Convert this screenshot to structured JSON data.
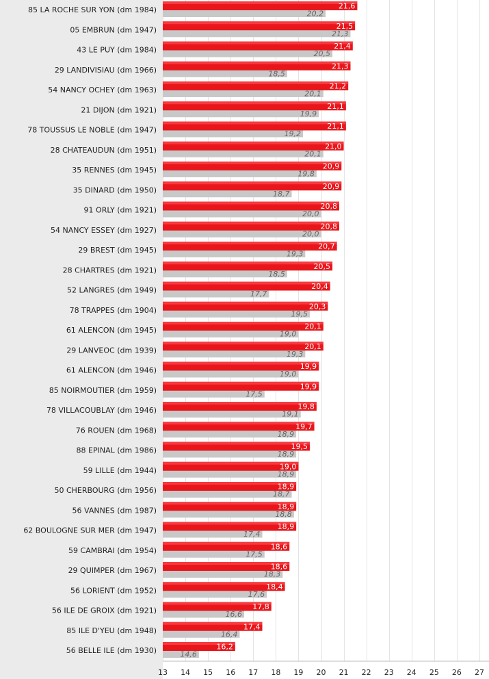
{
  "chart_data": {
    "type": "bar",
    "orientation": "horizontal",
    "categories": [
      "85 LA ROCHE SUR YON (dm 1984)",
      "05 EMBRUN (dm 1947)",
      "43 LE PUY (dm 1984)",
      "29 LANDIVISIAU (dm 1966)",
      "54 NANCY OCHEY (dm 1963)",
      "21 DIJON (dm 1921)",
      "78 TOUSSUS LE NOBLE (dm 1947)",
      "28 CHATEAUDUN (dm 1951)",
      "35 RENNES (dm 1945)",
      "35 DINARD (dm 1950)",
      "91 ORLY (dm 1921)",
      "54 NANCY ESSEY (dm 1927)",
      "29 BREST (dm 1945)",
      "28 CHARTRES (dm 1921)",
      "52 LANGRES (dm 1949)",
      "78 TRAPPES (dm 1904)",
      "61 ALENCON (dm 1945)",
      "29 LANVEOC (dm 1939)",
      "61 ALENCON (dm 1946)",
      "85 NOIRMOUTIER (dm 1959)",
      "78 VILLACOUBLAY (dm 1946)",
      "76 ROUEN (dm 1968)",
      "88 EPINAL (dm 1986)",
      "59 LILLE (dm 1944)",
      "50 CHERBOURG (dm 1956)",
      "56 VANNES (dm 1987)",
      "62 BOULOGNE SUR MER (dm 1947)",
      "59 CAMBRAI (dm 1954)",
      "29 QUIMPER (dm 1967)",
      "56 LORIENT (dm 1952)",
      "56 ILE DE GROIX (dm 1921)",
      "85 ILE D'YEU (dm 1948)",
      "56 BELLE ILE (dm 1930)"
    ],
    "series": [
      {
        "color": "#e8161b",
        "values": [
          21.6,
          21.5,
          21.4,
          21.3,
          21.2,
          21.1,
          21.1,
          21.0,
          20.9,
          20.9,
          20.8,
          20.8,
          20.7,
          20.5,
          20.4,
          20.3,
          20.1,
          20.1,
          19.9,
          19.9,
          19.8,
          19.7,
          19.5,
          19.0,
          18.9,
          18.9,
          18.9,
          18.6,
          18.6,
          18.4,
          17.8,
          17.4,
          16.2
        ],
        "labels": [
          "21,6",
          "21,5",
          "21,4",
          "21,3",
          "21,2",
          "21,1",
          "21,1",
          "21,0",
          "20,9",
          "20,9",
          "20,8",
          "20,8",
          "20,7",
          "20,5",
          "20,4",
          "20,3",
          "20,1",
          "20,1",
          "19,9",
          "19,9",
          "19,8",
          "19,7",
          "19,5",
          "19,0",
          "18,9",
          "18,9",
          "18,9",
          "18,6",
          "18,6",
          "18,4",
          "17,8",
          "17,4",
          "16,2"
        ]
      },
      {
        "color": "#c8c8c8",
        "values": [
          20.2,
          21.3,
          20.5,
          18.5,
          20.1,
          19.9,
          19.2,
          20.1,
          19.8,
          18.7,
          20.0,
          20.0,
          19.3,
          18.5,
          17.7,
          19.5,
          19.0,
          19.3,
          19.0,
          17.5,
          19.1,
          18.9,
          18.9,
          18.9,
          18.7,
          18.8,
          17.4,
          17.5,
          18.3,
          17.6,
          16.6,
          16.4,
          14.6
        ],
        "labels": [
          "20,2",
          "21,3",
          "20,5",
          "18,5",
          "20,1",
          "19,9",
          "19,2",
          "20,1",
          "19,8",
          "18,7",
          "20,0",
          "20,0",
          "19,3",
          "18,5",
          "17,7",
          "19,5",
          "19,0",
          "19,3",
          "19,0",
          "17,5",
          "19,1",
          "18,9",
          "18,9",
          "18,9",
          "18,7",
          "18,8",
          "17,4",
          "17,5",
          "18,3",
          "17,6",
          "16,6",
          "16,4",
          "14,6"
        ]
      }
    ],
    "xlim": [
      13,
      27
    ],
    "xticks": [
      "13",
      "14",
      "15",
      "16",
      "17",
      "18",
      "19",
      "20",
      "21",
      "22",
      "23",
      "24",
      "25",
      "26",
      "27"
    ],
    "grid": true,
    "xlabel": "",
    "ylabel": "",
    "title": ""
  }
}
